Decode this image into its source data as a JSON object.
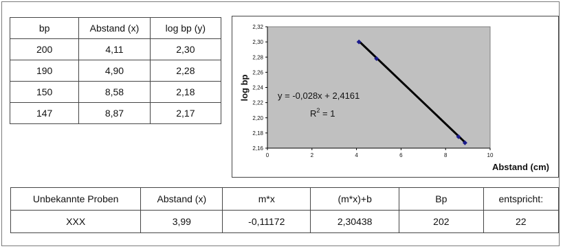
{
  "top_table": {
    "headers": [
      "bp",
      "Abstand (x)",
      "log bp (y)"
    ],
    "rows": [
      [
        "200",
        "4,11",
        "2,30"
      ],
      [
        "190",
        "4,90",
        "2,28"
      ],
      [
        "150",
        "8,58",
        "2,18"
      ],
      [
        "147",
        "8,87",
        "2,17"
      ]
    ]
  },
  "bottom_table": {
    "headers": [
      "Unbekannte Proben",
      "Abstand (x)",
      "m*x",
      "(m*x)+b",
      "Bp",
      "entspricht:"
    ],
    "rows": [
      [
        "XXX",
        "3,99",
        "-0,11172",
        "2,30438",
        "202",
        "22"
      ]
    ]
  },
  "chart_data": {
    "type": "scatter",
    "title": "",
    "xlabel": "Abstand (cm)",
    "ylabel": "log bp",
    "xlim": [
      0,
      10
    ],
    "ylim": [
      2.16,
      2.32
    ],
    "x_ticks": [
      0,
      2,
      4,
      6,
      8,
      10
    ],
    "x_tick_labels": [
      "0",
      "2",
      "4",
      "6",
      "8",
      "10"
    ],
    "y_ticks": [
      2.16,
      2.18,
      2.2,
      2.22,
      2.24,
      2.26,
      2.28,
      2.3,
      2.32
    ],
    "y_tick_labels": [
      "2,16",
      "2,18",
      "2,20",
      "2,22",
      "2,24",
      "2,26",
      "2,28",
      "2,30",
      "2,32"
    ],
    "points": [
      {
        "x": 4.11,
        "y": 2.3
      },
      {
        "x": 4.9,
        "y": 2.278
      },
      {
        "x": 8.58,
        "y": 2.175
      },
      {
        "x": 8.87,
        "y": 2.167
      }
    ],
    "trendline": {
      "slope": -0.028,
      "intercept": 2.4161,
      "x_range": [
        4.11,
        8.87
      ]
    },
    "annotations": {
      "equation": "y = -0,028x + 2,4161",
      "r2_prefix": "R",
      "r2_sup": "2",
      "r2_suffix": " = 1"
    },
    "grid": false,
    "plot_background": "#c0c0c0",
    "series_color": "#000000",
    "marker_color": "#1a1a8c"
  }
}
